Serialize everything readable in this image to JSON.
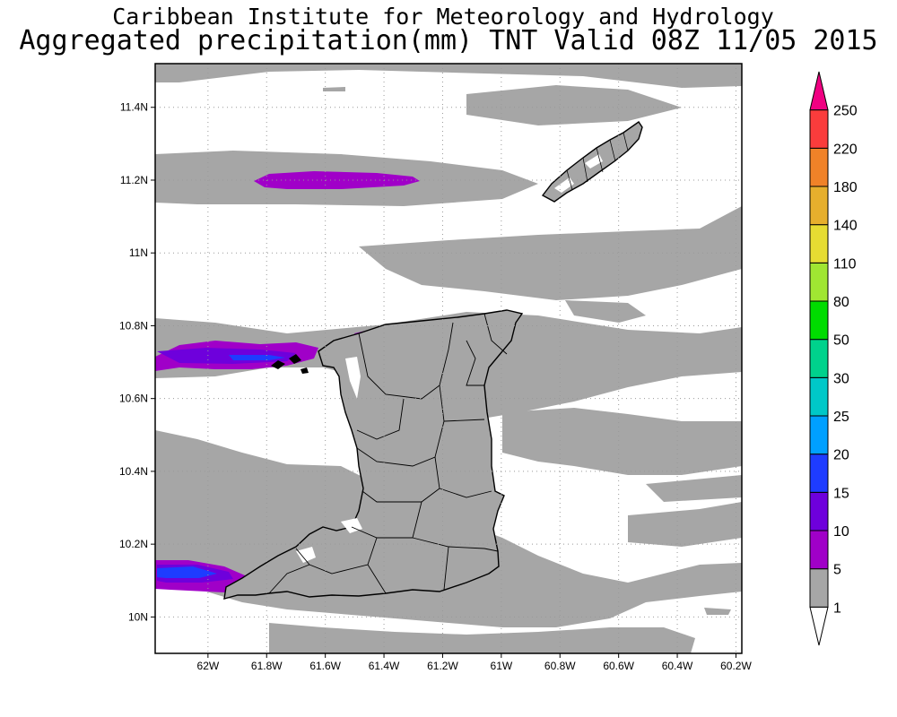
{
  "title": {
    "line1": "Caribbean Institute for Meteorology and Hydrology",
    "line2": "Aggregated precipitation(mm) TNT Valid 08Z 11/05 2015"
  },
  "axes": {
    "lon_ticks": [
      "62W",
      "61.8W",
      "61.6W",
      "61.4W",
      "61.2W",
      "61W",
      "60.8W",
      "60.6W",
      "60.4W",
      "60.2W"
    ],
    "lat_ticks": [
      "11.4N",
      "11.2N",
      "11N",
      "10.8N",
      "10.6N",
      "10.4N",
      "10.2N",
      "10N"
    ],
    "lon_range": [
      -62.18,
      -60.18
    ],
    "lat_range": [
      9.9,
      11.52
    ]
  },
  "colorbar": {
    "labels": [
      "1",
      "5",
      "10",
      "15",
      "20",
      "25",
      "30",
      "50",
      "80",
      "110",
      "140",
      "180",
      "220",
      "250"
    ],
    "colors": [
      "#ffffff",
      "#a6a6a6",
      "#a000c8",
      "#6e00dc",
      "#1e3cff",
      "#00a0ff",
      "#00c8c8",
      "#00d28c",
      "#00dc00",
      "#a0e632",
      "#e6dc32",
      "#e6af2d",
      "#f08228",
      "#fa3c3c",
      "#f00082"
    ]
  },
  "map": {
    "regions": [
      "Trinidad",
      "Tobago"
    ],
    "grid": true,
    "background_color": "#ffffff",
    "land_color": "#a6a6a6"
  }
}
